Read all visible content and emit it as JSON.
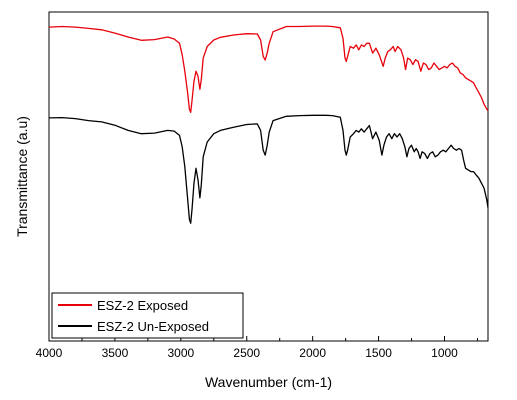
{
  "chart_data": {
    "type": "line",
    "xlabel": "Wavenumber (cm-1)",
    "ylabel": "Transmittance (a.u)",
    "xlim": [
      4000,
      670
    ],
    "x_reversed": true,
    "ylim": [
      0,
      100
    ],
    "y_ticks_shown": false,
    "grid": false,
    "legend_position": "bottom-left",
    "xticks": [
      4000,
      3500,
      3000,
      2500,
      2000,
      1500,
      1000
    ],
    "series": [
      {
        "name": "ESZ-2 Exposed",
        "color": "#e8000b",
        "points": [
          [
            4000,
            95.4
          ],
          [
            3900,
            95.6
          ],
          [
            3800,
            95.4
          ],
          [
            3700,
            95.0
          ],
          [
            3600,
            94.6
          ],
          [
            3500,
            93.6
          ],
          [
            3400,
            92.4
          ],
          [
            3300,
            91.4
          ],
          [
            3200,
            91.6
          ],
          [
            3100,
            92.4
          ],
          [
            3050,
            91.8
          ],
          [
            3010,
            90.5
          ],
          [
            2990,
            87.0
          ],
          [
            2970,
            82.0
          ],
          [
            2950,
            76.0
          ],
          [
            2935,
            70.5
          ],
          [
            2925,
            69.5
          ],
          [
            2915,
            73.0
          ],
          [
            2900,
            79.0
          ],
          [
            2885,
            82.0
          ],
          [
            2870,
            80.5
          ],
          [
            2855,
            76.5
          ],
          [
            2845,
            79.5
          ],
          [
            2830,
            86.0
          ],
          [
            2800,
            89.5
          ],
          [
            2750,
            91.5
          ],
          [
            2700,
            92.3
          ],
          [
            2600,
            93.0
          ],
          [
            2500,
            93.4
          ],
          [
            2420,
            93.3
          ],
          [
            2395,
            91.5
          ],
          [
            2375,
            86.5
          ],
          [
            2360,
            85.4
          ],
          [
            2345,
            87.5
          ],
          [
            2330,
            90.5
          ],
          [
            2300,
            94.0
          ],
          [
            2200,
            95.6
          ],
          [
            2100,
            95.6
          ],
          [
            2000,
            95.7
          ],
          [
            1900,
            95.7
          ],
          [
            1850,
            95.6
          ],
          [
            1790,
            95.2
          ],
          [
            1770,
            92.0
          ],
          [
            1755,
            86.0
          ],
          [
            1745,
            85.0
          ],
          [
            1735,
            86.5
          ],
          [
            1715,
            89.5
          ],
          [
            1690,
            89.0
          ],
          [
            1670,
            90.0
          ],
          [
            1650,
            88.5
          ],
          [
            1630,
            90.0
          ],
          [
            1610,
            89.5
          ],
          [
            1590,
            90.5
          ],
          [
            1570,
            90.5
          ],
          [
            1545,
            87.5
          ],
          [
            1520,
            89.0
          ],
          [
            1495,
            87.0
          ],
          [
            1465,
            83.5
          ],
          [
            1450,
            86.0
          ],
          [
            1430,
            88.0
          ],
          [
            1410,
            88.5
          ],
          [
            1390,
            89.5
          ],
          [
            1375,
            88.0
          ],
          [
            1355,
            89.5
          ],
          [
            1330,
            88.5
          ],
          [
            1310,
            86.0
          ],
          [
            1295,
            82.5
          ],
          [
            1280,
            86.0
          ],
          [
            1260,
            85.5
          ],
          [
            1240,
            84.0
          ],
          [
            1220,
            85.5
          ],
          [
            1200,
            85.0
          ],
          [
            1180,
            82.0
          ],
          [
            1160,
            84.5
          ],
          [
            1140,
            84.0
          ],
          [
            1120,
            82.5
          ],
          [
            1100,
            83.0
          ],
          [
            1080,
            84.5
          ],
          [
            1060,
            83.5
          ],
          [
            1040,
            82.5
          ],
          [
            1020,
            83.0
          ],
          [
            1000,
            83.5
          ],
          [
            980,
            83.0
          ],
          [
            960,
            84.0
          ],
          [
            940,
            84.5
          ],
          [
            920,
            83.5
          ],
          [
            900,
            83.0
          ],
          [
            880,
            81.5
          ],
          [
            860,
            81.0
          ],
          [
            840,
            80.0
          ],
          [
            820,
            79.5
          ],
          [
            800,
            79.0
          ],
          [
            780,
            78.5
          ],
          [
            760,
            77.0
          ],
          [
            740,
            75.5
          ],
          [
            720,
            74.0
          ],
          [
            700,
            72.0
          ],
          [
            680,
            70.5
          ],
          [
            670,
            70.0
          ]
        ]
      },
      {
        "name": "ESZ-2 Un-Exposed",
        "color": "#000000",
        "points": [
          [
            4000,
            67.8
          ],
          [
            3900,
            67.9
          ],
          [
            3800,
            67.6
          ],
          [
            3700,
            67.0
          ],
          [
            3600,
            66.6
          ],
          [
            3500,
            65.6
          ],
          [
            3400,
            64.0
          ],
          [
            3300,
            63.0
          ],
          [
            3200,
            63.2
          ],
          [
            3100,
            64.0
          ],
          [
            3050,
            63.8
          ],
          [
            3010,
            62.5
          ],
          [
            2990,
            59.0
          ],
          [
            2970,
            53.0
          ],
          [
            2950,
            44.0
          ],
          [
            2935,
            37.0
          ],
          [
            2925,
            35.8
          ],
          [
            2915,
            40.0
          ],
          [
            2900,
            48.0
          ],
          [
            2885,
            52.5
          ],
          [
            2870,
            49.0
          ],
          [
            2855,
            43.5
          ],
          [
            2845,
            47.5
          ],
          [
            2830,
            56.0
          ],
          [
            2800,
            60.5
          ],
          [
            2750,
            63.0
          ],
          [
            2700,
            64.0
          ],
          [
            2600,
            65.0
          ],
          [
            2500,
            65.8
          ],
          [
            2420,
            66.0
          ],
          [
            2395,
            64.0
          ],
          [
            2375,
            58.0
          ],
          [
            2360,
            56.5
          ],
          [
            2345,
            59.5
          ],
          [
            2330,
            63.5
          ],
          [
            2300,
            67.0
          ],
          [
            2200,
            68.3
          ],
          [
            2100,
            68.5
          ],
          [
            2000,
            68.6
          ],
          [
            1900,
            68.6
          ],
          [
            1850,
            68.5
          ],
          [
            1790,
            68.0
          ],
          [
            1770,
            64.0
          ],
          [
            1755,
            58.0
          ],
          [
            1745,
            56.5
          ],
          [
            1735,
            58.0
          ],
          [
            1715,
            62.0
          ],
          [
            1690,
            63.0
          ],
          [
            1670,
            64.0
          ],
          [
            1650,
            63.5
          ],
          [
            1630,
            64.5
          ],
          [
            1610,
            63.5
          ],
          [
            1590,
            64.5
          ],
          [
            1570,
            65.5
          ],
          [
            1545,
            61.5
          ],
          [
            1520,
            63.5
          ],
          [
            1495,
            61.0
          ],
          [
            1475,
            56.5
          ],
          [
            1460,
            59.5
          ],
          [
            1440,
            62.0
          ],
          [
            1420,
            63.0
          ],
          [
            1400,
            61.5
          ],
          [
            1380,
            63.0
          ],
          [
            1360,
            62.0
          ],
          [
            1340,
            63.0
          ],
          [
            1320,
            61.5
          ],
          [
            1300,
            59.0
          ],
          [
            1285,
            56.0
          ],
          [
            1270,
            58.5
          ],
          [
            1250,
            59.5
          ],
          [
            1230,
            57.5
          ],
          [
            1215,
            58.5
          ],
          [
            1200,
            57.5
          ],
          [
            1185,
            55.5
          ],
          [
            1170,
            57.5
          ],
          [
            1150,
            57.0
          ],
          [
            1130,
            55.5
          ],
          [
            1110,
            57.0
          ],
          [
            1090,
            57.5
          ],
          [
            1070,
            56.0
          ],
          [
            1050,
            56.5
          ],
          [
            1030,
            57.5
          ],
          [
            1010,
            58.0
          ],
          [
            990,
            57.5
          ],
          [
            970,
            58.5
          ],
          [
            950,
            59.5
          ],
          [
            930,
            58.5
          ],
          [
            910,
            58.0
          ],
          [
            890,
            58.5
          ],
          [
            870,
            58.0
          ],
          [
            855,
            55.0
          ],
          [
            840,
            52.5
          ],
          [
            820,
            52.0
          ],
          [
            800,
            51.5
          ],
          [
            780,
            51.5
          ],
          [
            760,
            50.5
          ],
          [
            740,
            49.5
          ],
          [
            720,
            48.0
          ],
          [
            700,
            46.5
          ],
          [
            680,
            43.0
          ],
          [
            670,
            40.5
          ]
        ]
      }
    ]
  }
}
